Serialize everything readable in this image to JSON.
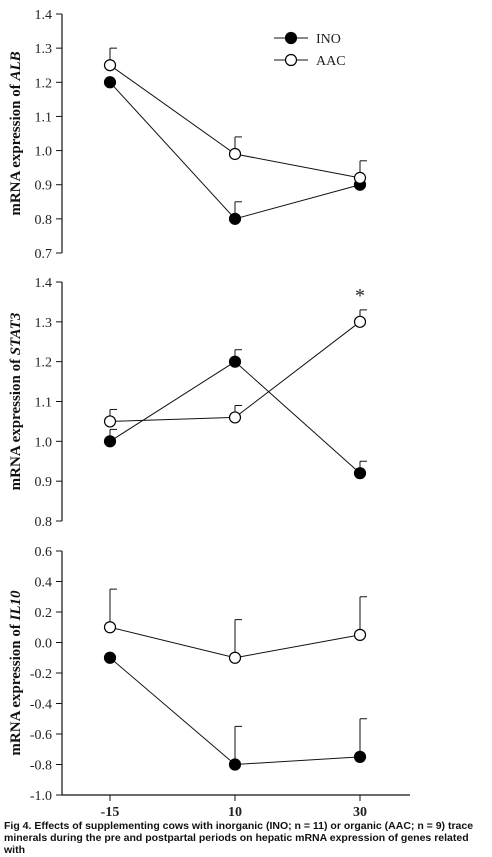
{
  "chart_data": [
    {
      "type": "line",
      "ylabel_prefix": "mRNA expression of ",
      "ylabel_gene": "ALB",
      "ylim": [
        0.7,
        1.4
      ],
      "yticks": [
        "0.7",
        "0.8",
        "0.9",
        "1.0",
        "1.1",
        "1.2",
        "1.3",
        "1.4"
      ],
      "x_positions": [
        -15,
        10,
        30
      ],
      "legend": {
        "placement": "top",
        "items": [
          "INO",
          "AAC"
        ]
      },
      "series": [
        {
          "name": "INO",
          "marker": "filled",
          "values": [
            1.2,
            0.8,
            0.9
          ],
          "errors": [
            0.0,
            0.05,
            0.0
          ]
        },
        {
          "name": "AAC",
          "marker": "open",
          "values": [
            1.25,
            0.99,
            0.92
          ],
          "errors": [
            0.05,
            0.05,
            0.05
          ]
        }
      ],
      "annotations": []
    },
    {
      "type": "line",
      "ylabel_prefix": "mRNA expression of ",
      "ylabel_gene": "STAT3",
      "ylim": [
        0.8,
        1.4
      ],
      "yticks": [
        "0.8",
        "0.9",
        "1.0",
        "1.1",
        "1.2",
        "1.3",
        "1.4"
      ],
      "x_positions": [
        -15,
        10,
        30
      ],
      "series": [
        {
          "name": "INO",
          "marker": "filled",
          "values": [
            1.0,
            1.2,
            0.92
          ],
          "errors": [
            0.03,
            0.03,
            0.03
          ]
        },
        {
          "name": "AAC",
          "marker": "open",
          "values": [
            1.05,
            1.06,
            1.3
          ],
          "errors": [
            0.03,
            0.03,
            0.03
          ]
        }
      ],
      "annotations": [
        {
          "x": 30,
          "text": "*"
        }
      ]
    },
    {
      "type": "line",
      "ylabel_prefix": "mRNA expression of ",
      "ylabel_gene": "IL10",
      "ylim": [
        -1.0,
        0.6
      ],
      "yticks": [
        "-1.0",
        "-0.8",
        "-0.6",
        "-0.4",
        "-0.2",
        "0.0",
        "0.2",
        "0.4",
        "0.6"
      ],
      "x_positions": [
        -15,
        10,
        30
      ],
      "xticks": [
        "-15",
        "10",
        "30"
      ],
      "series": [
        {
          "name": "INO",
          "marker": "filled",
          "values": [
            -0.1,
            -0.8,
            -0.75
          ],
          "errors": [
            0.0,
            0.25,
            0.25
          ]
        },
        {
          "name": "AAC",
          "marker": "open",
          "values": [
            0.1,
            -0.1,
            0.05
          ],
          "errors": [
            0.25,
            0.25,
            0.25
          ]
        }
      ],
      "annotations": []
    }
  ],
  "caption": {
    "line1": "Fig 4. Effects of supplementing cows with inorganic (INO; n = 11) or organic (AAC; n = 9) trace",
    "line2": "minerals during the pre and postpartal periods on hepatic mRNA expression of genes related with"
  }
}
